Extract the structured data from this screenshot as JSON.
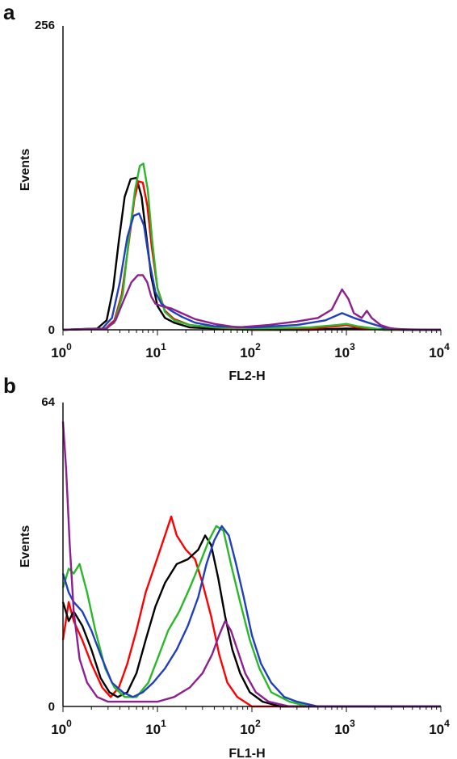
{
  "chart_data": [
    {
      "panel": "a",
      "type": "line",
      "xlabel": "FL2-H",
      "ylabel": "Events",
      "x_scale": "log",
      "xlim": [
        1,
        10000
      ],
      "ylim": [
        0,
        256
      ],
      "x_ticks": [
        {
          "base": "10",
          "exp": "0"
        },
        {
          "base": "10",
          "exp": "1"
        },
        {
          "base": "10",
          "exp": "2"
        },
        {
          "base": "10",
          "exp": "3"
        },
        {
          "base": "10",
          "exp": "4"
        }
      ],
      "y_ticks": [
        "0",
        "256"
      ],
      "series": [
        {
          "color": "#000000",
          "points": [
            [
              1,
              0
            ],
            [
              2.3,
              1
            ],
            [
              2.9,
              8
            ],
            [
              3.4,
              35
            ],
            [
              3.9,
              75
            ],
            [
              4.5,
              112
            ],
            [
              5.2,
              127
            ],
            [
              6.0,
              128
            ],
            [
              6.8,
              112
            ],
            [
              7.6,
              80
            ],
            [
              8.6,
              45
            ],
            [
              10,
              20
            ],
            [
              12,
              10
            ],
            [
              15,
              6
            ],
            [
              22,
              2
            ],
            [
              40,
              1
            ],
            [
              100,
              0
            ],
            [
              400,
              0
            ],
            [
              1000,
              1
            ],
            [
              10000,
              0
            ]
          ]
        },
        {
          "color": "#ff0000",
          "points": [
            [
              1,
              0
            ],
            [
              2.8,
              1
            ],
            [
              3.5,
              8
            ],
            [
              4.2,
              30
            ],
            [
              5.0,
              75
            ],
            [
              5.7,
              110
            ],
            [
              6.3,
              125
            ],
            [
              7.0,
              124
            ],
            [
              7.8,
              105
            ],
            [
              8.7,
              70
            ],
            [
              10,
              35
            ],
            [
              12,
              16
            ],
            [
              15,
              9
            ],
            [
              22,
              4
            ],
            [
              40,
              2
            ],
            [
              100,
              0
            ],
            [
              400,
              1
            ],
            [
              800,
              3
            ],
            [
              1000,
              4
            ],
            [
              1300,
              2
            ],
            [
              2500,
              0
            ],
            [
              10000,
              0
            ]
          ]
        },
        {
          "color": "#2ab82a",
          "points": [
            [
              1,
              0
            ],
            [
              2.8,
              1
            ],
            [
              3.5,
              6
            ],
            [
              4.3,
              30
            ],
            [
              5.0,
              78
            ],
            [
              5.8,
              118
            ],
            [
              6.5,
              138
            ],
            [
              7.1,
              140
            ],
            [
              7.9,
              118
            ],
            [
              8.8,
              75
            ],
            [
              10,
              35
            ],
            [
              12,
              15
            ],
            [
              15,
              8
            ],
            [
              22,
              4
            ],
            [
              40,
              2
            ],
            [
              100,
              1
            ],
            [
              400,
              2
            ],
            [
              800,
              4
            ],
            [
              1000,
              5
            ],
            [
              1300,
              3
            ],
            [
              2500,
              0
            ],
            [
              10000,
              0
            ]
          ]
        },
        {
          "color": "#1f3fbf",
          "points": [
            [
              1,
              0
            ],
            [
              2.6,
              1
            ],
            [
              3.3,
              10
            ],
            [
              4.0,
              40
            ],
            [
              4.8,
              78
            ],
            [
              5.6,
              96
            ],
            [
              6.4,
              98
            ],
            [
              7.2,
              88
            ],
            [
              8.2,
              58
            ],
            [
              9.5,
              32
            ],
            [
              11,
              22
            ],
            [
              14,
              16
            ],
            [
              18,
              11
            ],
            [
              25,
              6
            ],
            [
              40,
              3
            ],
            [
              100,
              2
            ],
            [
              300,
              4
            ],
            [
              600,
              8
            ],
            [
              900,
              14
            ],
            [
              1200,
              10
            ],
            [
              1700,
              6
            ],
            [
              2500,
              2
            ],
            [
              4000,
              0
            ],
            [
              10000,
              0
            ]
          ]
        },
        {
          "color": "#8e1f8e",
          "points": [
            [
              1,
              0
            ],
            [
              2.9,
              1
            ],
            [
              3.6,
              8
            ],
            [
              4.4,
              25
            ],
            [
              5.3,
              40
            ],
            [
              6.2,
              46
            ],
            [
              7.0,
              46
            ],
            [
              7.8,
              40
            ],
            [
              8.6,
              28
            ],
            [
              9.5,
              22
            ],
            [
              11,
              20
            ],
            [
              14,
              18
            ],
            [
              18,
              14
            ],
            [
              25,
              9
            ],
            [
              40,
              5
            ],
            [
              70,
              2
            ],
            [
              150,
              4
            ],
            [
              300,
              7
            ],
            [
              500,
              10
            ],
            [
              700,
              17
            ],
            [
              900,
              34
            ],
            [
              1050,
              26
            ],
            [
              1200,
              14
            ],
            [
              1450,
              10
            ],
            [
              1650,
              16
            ],
            [
              1850,
              10
            ],
            [
              2300,
              4
            ],
            [
              3000,
              1
            ],
            [
              5000,
              0
            ],
            [
              10000,
              0
            ]
          ]
        }
      ]
    },
    {
      "panel": "b",
      "type": "line",
      "xlabel": "FL1-H",
      "ylabel": "Events",
      "x_scale": "log",
      "xlim": [
        1,
        10000
      ],
      "ylim": [
        0,
        64
      ],
      "x_ticks": [
        {
          "base": "10",
          "exp": "0"
        },
        {
          "base": "10",
          "exp": "1"
        },
        {
          "base": "10",
          "exp": "2"
        },
        {
          "base": "10",
          "exp": "3"
        },
        {
          "base": "10",
          "exp": "4"
        }
      ],
      "y_ticks": [
        "0",
        "64"
      ],
      "series": [
        {
          "color": "#ff0000",
          "points": [
            [
              1,
              14
            ],
            [
              1.15,
              22
            ],
            [
              1.3,
              18
            ],
            [
              1.6,
              14
            ],
            [
              2.0,
              9
            ],
            [
              2.6,
              4
            ],
            [
              3.2,
              2
            ],
            [
              3.9,
              4
            ],
            [
              4.8,
              9
            ],
            [
              6.0,
              16
            ],
            [
              7.5,
              24
            ],
            [
              9.5,
              30
            ],
            [
              12,
              36
            ],
            [
              14,
              40
            ],
            [
              16,
              36
            ],
            [
              20,
              33
            ],
            [
              25,
              31
            ],
            [
              30,
              26
            ],
            [
              37,
              19
            ],
            [
              45,
              11
            ],
            [
              55,
              5
            ],
            [
              70,
              2
            ],
            [
              100,
              0
            ],
            [
              10000,
              0
            ]
          ]
        },
        {
          "color": "#000000",
          "points": [
            [
              1,
              22
            ],
            [
              1.15,
              18
            ],
            [
              1.3,
              20
            ],
            [
              1.6,
              17
            ],
            [
              2.0,
              12
            ],
            [
              2.5,
              6
            ],
            [
              3.1,
              3
            ],
            [
              3.8,
              2
            ],
            [
              4.8,
              3
            ],
            [
              6.0,
              7
            ],
            [
              7.5,
              14
            ],
            [
              9.5,
              21
            ],
            [
              12,
              26
            ],
            [
              16,
              30
            ],
            [
              21,
              31
            ],
            [
              27,
              33
            ],
            [
              32,
              36
            ],
            [
              37,
              34
            ],
            [
              44,
              27
            ],
            [
              52,
              19
            ],
            [
              62,
              12
            ],
            [
              75,
              7
            ],
            [
              95,
              3
            ],
            [
              130,
              1
            ],
            [
              200,
              0
            ],
            [
              10000,
              0
            ]
          ]
        },
        {
          "color": "#2ab82a",
          "points": [
            [
              1,
              25
            ],
            [
              1.15,
              29
            ],
            [
              1.3,
              28
            ],
            [
              1.5,
              30
            ],
            [
              1.8,
              24
            ],
            [
              2.2,
              16
            ],
            [
              2.8,
              8
            ],
            [
              3.5,
              4
            ],
            [
              4.5,
              2
            ],
            [
              6.0,
              2
            ],
            [
              8.0,
              5
            ],
            [
              10,
              10
            ],
            [
              13,
              16
            ],
            [
              17,
              20
            ],
            [
              22,
              25
            ],
            [
              28,
              30
            ],
            [
              35,
              35
            ],
            [
              42,
              38
            ],
            [
              50,
              37
            ],
            [
              60,
              30
            ],
            [
              75,
              22
            ],
            [
              95,
              14
            ],
            [
              120,
              8
            ],
            [
              160,
              3
            ],
            [
              250,
              1
            ],
            [
              400,
              0
            ],
            [
              10000,
              0
            ]
          ]
        },
        {
          "color": "#1f3fbf",
          "points": [
            [
              1,
              28
            ],
            [
              1.15,
              24
            ],
            [
              1.3,
              22
            ],
            [
              1.6,
              20
            ],
            [
              2.0,
              16
            ],
            [
              2.6,
              10
            ],
            [
              3.3,
              5
            ],
            [
              4.3,
              3
            ],
            [
              5.5,
              2
            ],
            [
              7.0,
              3
            ],
            [
              9.0,
              5
            ],
            [
              12,
              8
            ],
            [
              16,
              12
            ],
            [
              21,
              17
            ],
            [
              27,
              23
            ],
            [
              33,
              30
            ],
            [
              40,
              35
            ],
            [
              48,
              38
            ],
            [
              57,
              36
            ],
            [
              68,
              30
            ],
            [
              82,
              23
            ],
            [
              100,
              15
            ],
            [
              125,
              9
            ],
            [
              160,
              5
            ],
            [
              220,
              2
            ],
            [
              300,
              1
            ],
            [
              500,
              0
            ],
            [
              10000,
              0
            ]
          ]
        },
        {
          "color": "#8e1f8e",
          "points": [
            [
              1,
              60
            ],
            [
              1.08,
              50
            ],
            [
              1.18,
              34
            ],
            [
              1.3,
              20
            ],
            [
              1.5,
              10
            ],
            [
              1.8,
              5
            ],
            [
              2.3,
              2
            ],
            [
              3.0,
              1
            ],
            [
              4.0,
              1
            ],
            [
              6.0,
              1
            ],
            [
              10,
              1
            ],
            [
              15,
              2
            ],
            [
              22,
              4
            ],
            [
              30,
              7
            ],
            [
              38,
              11
            ],
            [
              45,
              15
            ],
            [
              52,
              18
            ],
            [
              60,
              16
            ],
            [
              70,
              12
            ],
            [
              85,
              7
            ],
            [
              110,
              3
            ],
            [
              150,
              1
            ],
            [
              250,
              0
            ],
            [
              10000,
              0
            ]
          ]
        }
      ]
    }
  ]
}
